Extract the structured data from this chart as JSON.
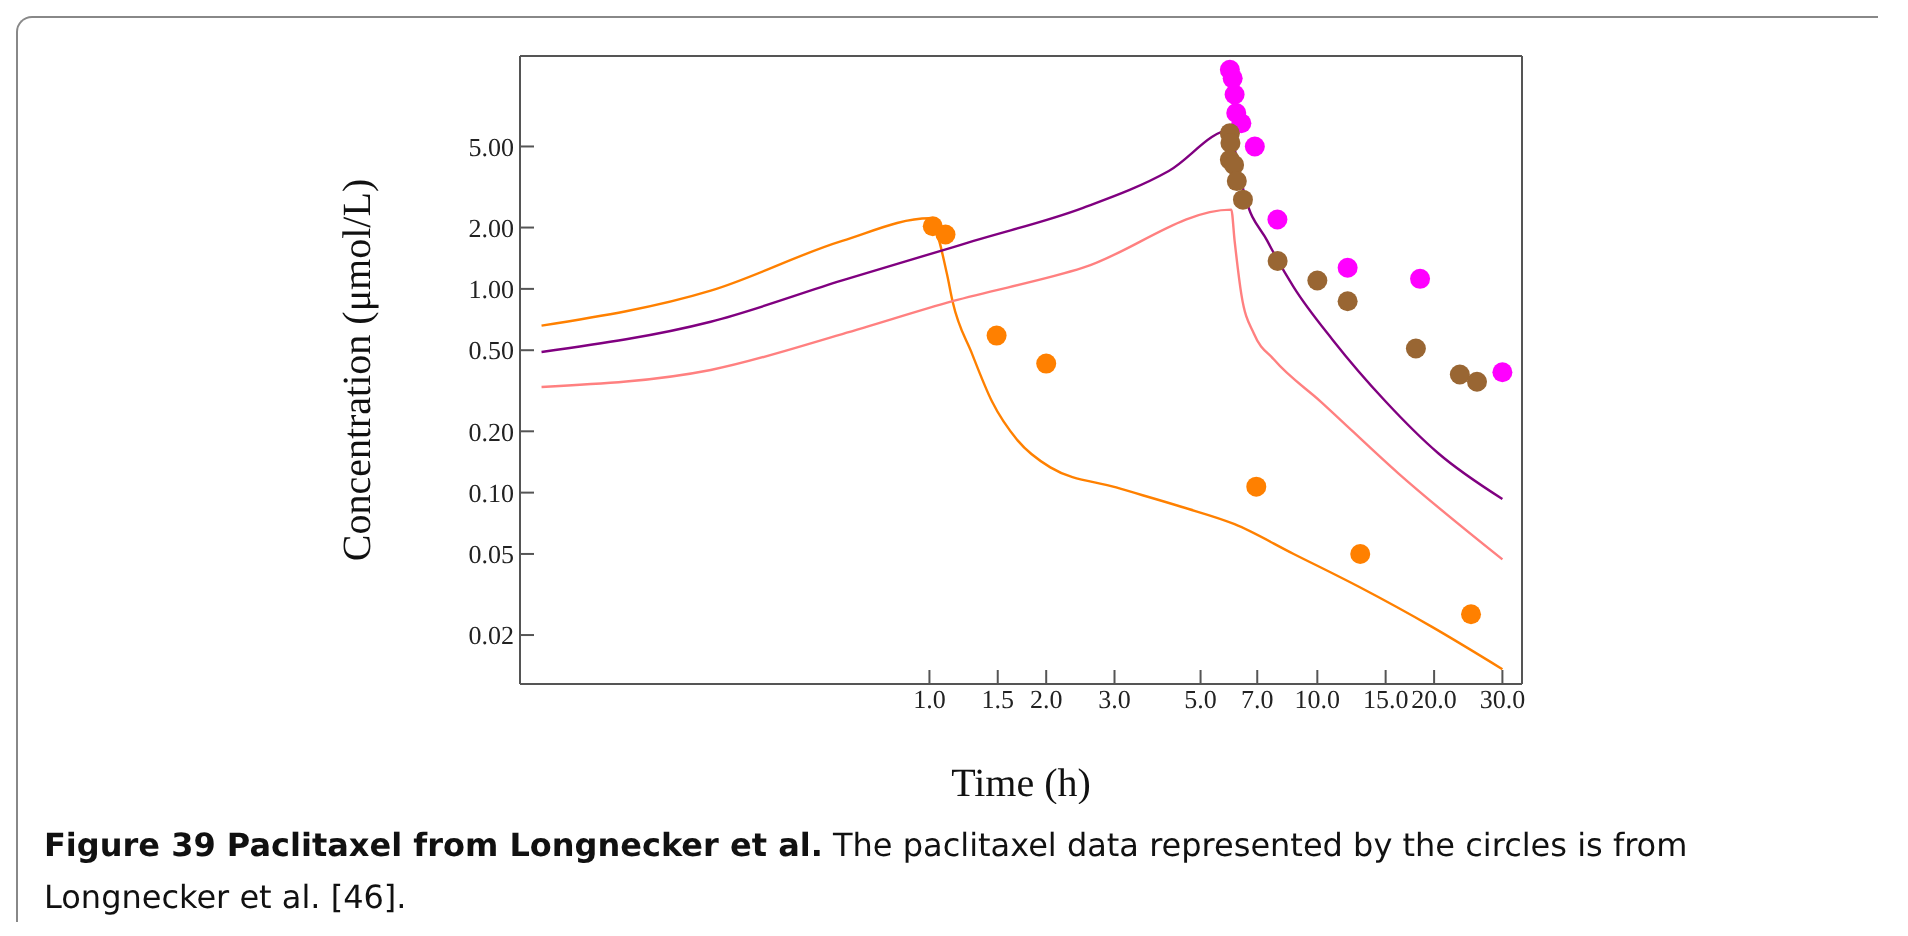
{
  "chart_data": {
    "type": "line",
    "title": "Figure 39 Paclitaxel from Longnecker et al.",
    "annotations": [
      "The paclitaxel data represented by the circles is from Longnecker et al. [46]."
    ],
    "xlabel": "Time (h)",
    "ylabel": "Concentration (μmol/L)",
    "log": "xy",
    "xlim": [
      0.088,
      33.7
    ],
    "ylim": [
      0.0115,
      13.9
    ],
    "xticks": [
      {
        "value": 1,
        "label": "1.0"
      },
      {
        "value": 1.5,
        "label": "1.5"
      },
      {
        "value": 2,
        "label": "2.0"
      },
      {
        "value": 3,
        "label": "3.0"
      },
      {
        "value": 5,
        "label": "5.0"
      },
      {
        "value": 7,
        "label": "7.0"
      },
      {
        "value": 10,
        "label": "10.0"
      },
      {
        "value": 15,
        "label": "15.0"
      },
      {
        "value": 20,
        "label": "20.0"
      },
      {
        "value": 30,
        "label": "30.0"
      }
    ],
    "yticks": [
      {
        "value": 0.02,
        "label": "0.02"
      },
      {
        "value": 0.05,
        "label": "0.05"
      },
      {
        "value": 0.1,
        "label": "0.10"
      },
      {
        "value": 0.2,
        "label": "0.20"
      },
      {
        "value": 0.5,
        "label": "0.50"
      },
      {
        "value": 1,
        "label": "1.00"
      },
      {
        "value": 2,
        "label": "2.00"
      },
      {
        "value": 5,
        "label": "5.00"
      }
    ],
    "series": [
      {
        "marker": "none",
        "color": "#ff8000",
        "x": [
          0.1,
          0.273,
          0.596,
          1.0,
          1.11,
          1.147,
          1.288,
          1.45,
          1.69,
          2.05,
          3.03,
          4.48,
          6.12,
          8.69,
          12.8,
          19.7,
          30
        ],
        "values": [
          0.66,
          0.98,
          1.72,
          2.22,
          1.18,
          0.87,
          0.48,
          0.28,
          0.18,
          0.133,
          0.106,
          0.085,
          0.07,
          0.05,
          0.0345,
          0.022,
          0.0136
        ]
      },
      {
        "marker": "none",
        "color": "#800080",
        "x": [
          0.1,
          0.273,
          0.596,
          1.147,
          1.3,
          2.49,
          4.14,
          6.0,
          6.12,
          6.49,
          7.43,
          8.69,
          10.97,
          15.0,
          20.5,
          30
        ],
        "values": [
          0.49,
          0.69,
          1.1,
          1.6,
          1.72,
          2.5,
          3.79,
          6.03,
          4.9,
          2.91,
          1.72,
          1.02,
          0.56,
          0.28,
          0.156,
          0.093
        ]
      },
      {
        "marker": "none",
        "color": "#ff8080",
        "x": [
          0.1,
          0.273,
          0.596,
          1.147,
          2.49,
          6.0,
          6.12,
          6.37,
          6.87,
          7.73,
          10.2,
          16.2,
          30
        ],
        "values": [
          0.33,
          0.4,
          0.6,
          0.87,
          1.27,
          2.45,
          1.72,
          0.94,
          0.6,
          0.45,
          0.28,
          0.124,
          0.047
        ]
      },
      {
        "type": "scatter",
        "marker": "circle",
        "color": "#ff8000",
        "x": [
          1.02,
          1.1,
          1.49,
          2.0,
          6.96,
          12.9,
          24.9
        ],
        "values": [
          2.03,
          1.85,
          0.59,
          0.43,
          0.107,
          0.05,
          0.0253
        ]
      },
      {
        "type": "scatter",
        "marker": "circle",
        "color": "#ff00ff",
        "x": [
          5.95,
          6.05,
          6.12,
          6.18,
          6.37,
          6.9,
          7.89,
          11.97,
          18.4,
          30
        ],
        "values": [
          11.9,
          10.8,
          9.0,
          7.3,
          6.5,
          5.0,
          2.19,
          1.27,
          1.12,
          0.39
        ]
      },
      {
        "type": "scatter",
        "marker": "circle",
        "color": "#996633",
        "x": [
          5.95,
          5.97,
          5.95,
          6.1,
          6.2,
          6.43,
          7.9,
          10.0,
          11.97,
          17.95,
          23.3,
          25.8
        ],
        "values": [
          5.8,
          5.2,
          4.3,
          4.06,
          3.38,
          2.74,
          1.37,
          1.1,
          0.87,
          0.51,
          0.38,
          0.35
        ]
      }
    ]
  }
}
